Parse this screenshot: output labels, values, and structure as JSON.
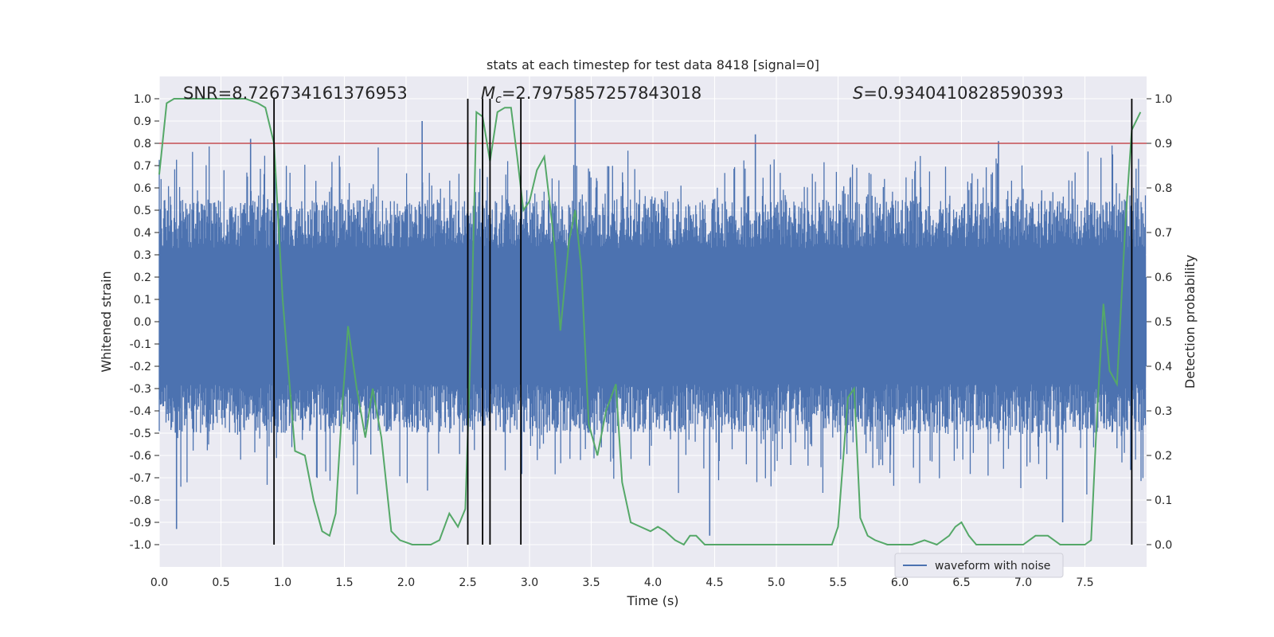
{
  "chart_data": {
    "type": "line",
    "title": "stats at each timestep for test data 8418 [signal=0]",
    "xlabel": "Time (s)",
    "ylabel": "Whitened strain",
    "y2label": "Detection probability",
    "xlim": [
      0.0,
      8.0
    ],
    "ylim": [
      -1.1,
      1.1
    ],
    "y2lim": [
      -0.05,
      1.05
    ],
    "x_ticks": [
      "0.0",
      "0.5",
      "1.0",
      "1.5",
      "2.0",
      "2.5",
      "3.0",
      "3.5",
      "4.0",
      "4.5",
      "5.0",
      "5.5",
      "6.0",
      "6.5",
      "7.0",
      "7.5"
    ],
    "y_ticks": [
      "1.0",
      "0.9",
      "0.8",
      "0.7",
      "0.6",
      "0.5",
      "0.4",
      "0.3",
      "0.2",
      "0.1",
      "0.0",
      "-0.1",
      "-0.2",
      "-0.3",
      "-0.4",
      "-0.5",
      "-0.6",
      "-0.7",
      "-0.8",
      "-0.9",
      "-1.0"
    ],
    "y2_ticks": [
      "1.0",
      "0.9",
      "0.8",
      "0.7",
      "0.6",
      "0.5",
      "0.4",
      "0.3",
      "0.2",
      "0.1",
      "0.0"
    ],
    "grid": true,
    "legend": {
      "position": "lower-right",
      "label": "waveform with noise"
    },
    "annotations": {
      "snr": "SNR=8.726734161376953",
      "mc_symbol": "M",
      "mc_sub": "c",
      "mc_value": "=2.7975857257843018",
      "s_symbol": "S",
      "s_value": "=0.9340410828590393"
    },
    "threshold": {
      "value": 0.8,
      "color": "#c44e52"
    },
    "vertical_lines_x": [
      0.93,
      2.5,
      2.62,
      2.68,
      2.93,
      7.88
    ],
    "series": [
      {
        "name": "waveform with noise",
        "color": "#4c72b0",
        "description": "noise waveform; positive envelope ~0.35-0.7 with spikes, negative envelope ~-0.3 to -0.7 with spikes",
        "spikes": [
          {
            "x": 0.14,
            "y": -0.93
          },
          {
            "x": 0.74,
            "y": 0.82
          },
          {
            "x": 2.13,
            "y": 0.9
          },
          {
            "x": 3.37,
            "y": 1.0
          },
          {
            "x": 4.46,
            "y": -0.96
          },
          {
            "x": 4.83,
            "y": 0.84
          },
          {
            "x": 6.8,
            "y": 0.81
          },
          {
            "x": 7.32,
            "y": -0.9
          }
        ]
      },
      {
        "name": "",
        "color": "#55a868",
        "axis": "right",
        "x": [
          0.0,
          0.06,
          0.12,
          0.3,
          0.5,
          0.7,
          0.8,
          0.86,
          0.93,
          1.0,
          1.1,
          1.18,
          1.25,
          1.32,
          1.38,
          1.43,
          1.48,
          1.53,
          1.6,
          1.67,
          1.73,
          1.8,
          1.88,
          1.95,
          2.05,
          2.13,
          2.2,
          2.27,
          2.35,
          2.42,
          2.48,
          2.53,
          2.57,
          2.62,
          2.68,
          2.74,
          2.8,
          2.85,
          2.9,
          2.95,
          3.0,
          3.06,
          3.12,
          3.2,
          3.25,
          3.32,
          3.37,
          3.42,
          3.48,
          3.55,
          3.62,
          3.7,
          3.75,
          3.82,
          3.9,
          3.98,
          4.04,
          4.1,
          4.18,
          4.25,
          4.3,
          4.35,
          4.42,
          4.5,
          4.6,
          4.7,
          4.8,
          4.9,
          5.0,
          5.1,
          5.2,
          5.3,
          5.38,
          5.45,
          5.5,
          5.58,
          5.63,
          5.68,
          5.74,
          5.8,
          5.9,
          6.0,
          6.1,
          6.2,
          6.3,
          6.4,
          6.45,
          6.5,
          6.56,
          6.62,
          6.7,
          6.8,
          6.9,
          7.0,
          7.1,
          7.2,
          7.3,
          7.37,
          7.44,
          7.5,
          7.55,
          7.6,
          7.65,
          7.7,
          7.76,
          7.83,
          7.88,
          7.95
        ],
        "y": [
          0.83,
          0.99,
          1.0,
          1.0,
          1.0,
          1.0,
          0.99,
          0.98,
          0.9,
          0.55,
          0.21,
          0.2,
          0.1,
          0.03,
          0.02,
          0.07,
          0.3,
          0.49,
          0.35,
          0.24,
          0.35,
          0.24,
          0.03,
          0.01,
          0.0,
          0.0,
          0.0,
          0.01,
          0.07,
          0.04,
          0.08,
          0.5,
          0.97,
          0.96,
          0.86,
          0.97,
          0.98,
          0.98,
          0.87,
          0.75,
          0.77,
          0.84,
          0.87,
          0.68,
          0.48,
          0.68,
          0.75,
          0.62,
          0.27,
          0.2,
          0.3,
          0.36,
          0.14,
          0.05,
          0.04,
          0.03,
          0.04,
          0.03,
          0.01,
          0.0,
          0.02,
          0.02,
          0.0,
          0.0,
          0.0,
          0.0,
          0.0,
          0.0,
          0.0,
          0.0,
          0.0,
          0.0,
          0.0,
          0.0,
          0.04,
          0.33,
          0.35,
          0.06,
          0.02,
          0.01,
          0.0,
          0.0,
          0.0,
          0.01,
          0.0,
          0.02,
          0.04,
          0.05,
          0.02,
          0.0,
          0.0,
          0.0,
          0.0,
          0.0,
          0.02,
          0.02,
          0.0,
          0.0,
          0.0,
          0.0,
          0.01,
          0.3,
          0.54,
          0.39,
          0.36,
          0.73,
          0.93,
          0.97
        ]
      }
    ]
  }
}
